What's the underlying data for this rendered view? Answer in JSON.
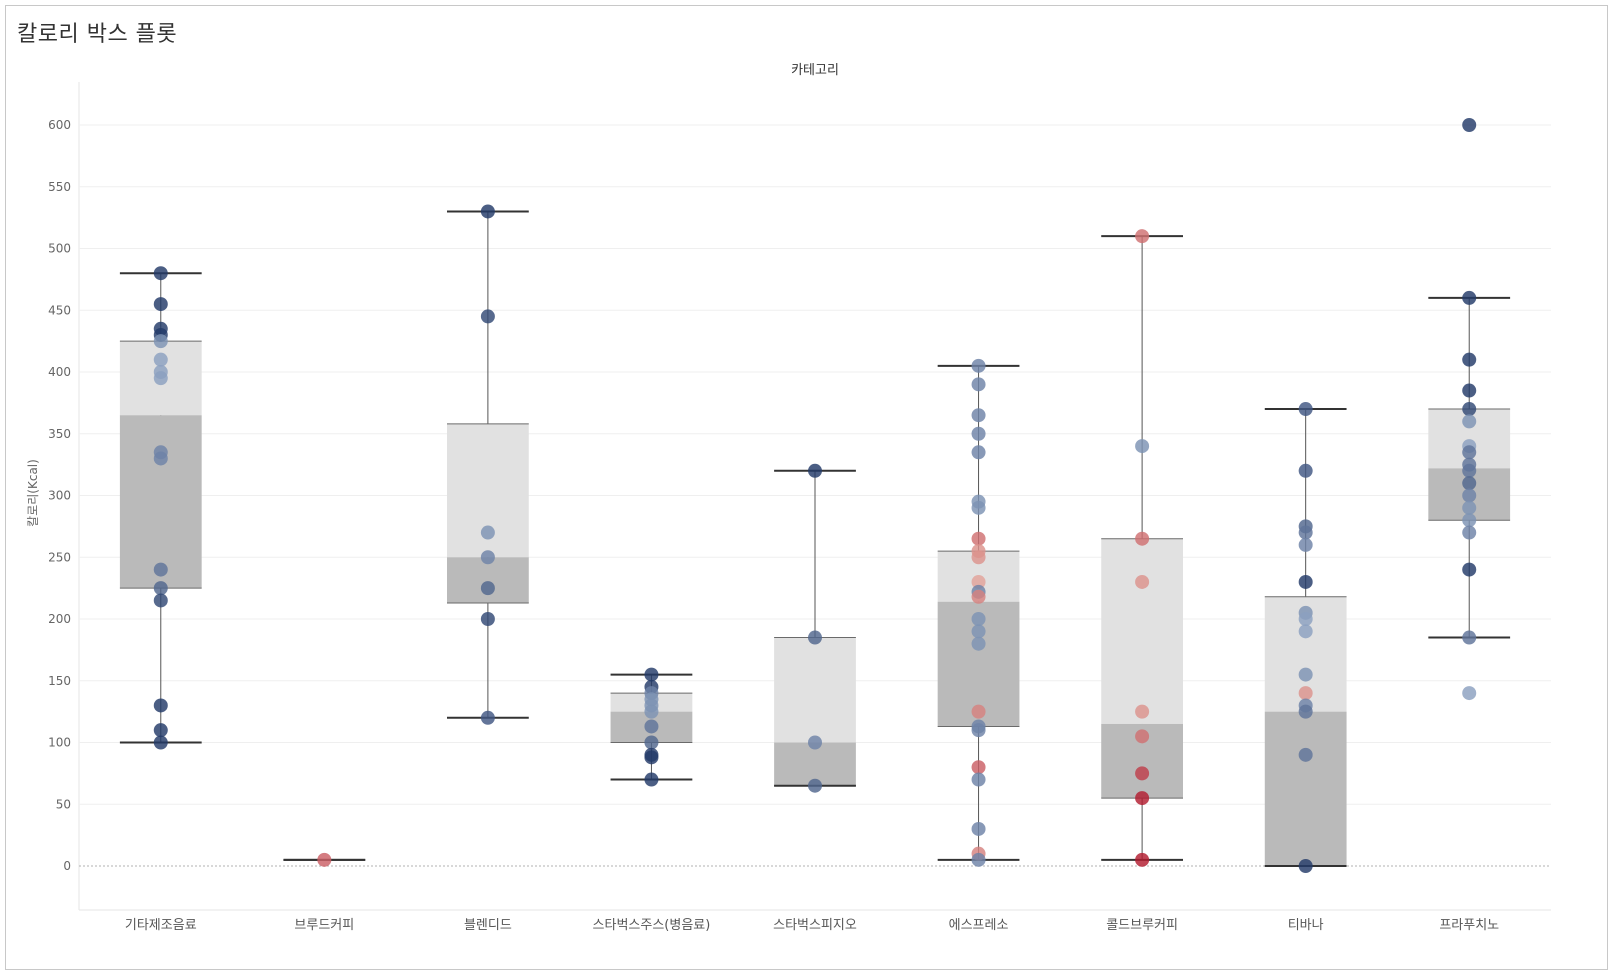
{
  "title": "칼로리 박스 플롯",
  "chart_data": {
    "type": "box",
    "column_header": "카테고리",
    "ylabel": "칼로리(Kcal)",
    "ylim": [
      -35,
      640
    ],
    "yticks": [
      0,
      50,
      100,
      150,
      200,
      250,
      300,
      350,
      400,
      450,
      500,
      550,
      600
    ],
    "grid": true,
    "categories": [
      {
        "name": "기타제조음료",
        "box": {
          "lower_whisker": 100,
          "q1": 225,
          "median": 365,
          "q3": 425,
          "upper_whisker": 480
        },
        "points": [
          {
            "v": 480,
            "c": 1
          },
          {
            "v": 455,
            "c": 1
          },
          {
            "v": 435,
            "c": 1
          },
          {
            "v": 430,
            "c": 1
          },
          {
            "v": 425,
            "c": 0.4
          },
          {
            "v": 410,
            "c": 0.3
          },
          {
            "v": 400,
            "c": 0.3
          },
          {
            "v": 395,
            "c": 0.3
          },
          {
            "v": 335,
            "c": 0.5
          },
          {
            "v": 330,
            "c": 0.5
          },
          {
            "v": 240,
            "c": 0.6
          },
          {
            "v": 225,
            "c": 0.7
          },
          {
            "v": 215,
            "c": 0.9
          },
          {
            "v": 130,
            "c": 1
          },
          {
            "v": 110,
            "c": 1
          },
          {
            "v": 100,
            "c": 1
          }
        ]
      },
      {
        "name": "브루드커피",
        "box": {
          "lower_whisker": 5,
          "q1": 5,
          "median": 5,
          "q3": 5,
          "upper_whisker": 5
        },
        "points": [
          {
            "v": 5,
            "c": -0.6
          }
        ]
      },
      {
        "name": "블렌디드",
        "box": {
          "lower_whisker": 120,
          "q1": 213,
          "median": 250,
          "q3": 358,
          "upper_whisker": 530
        },
        "points": [
          {
            "v": 530,
            "c": 1
          },
          {
            "v": 445,
            "c": 0.9
          },
          {
            "v": 270,
            "c": 0.4
          },
          {
            "v": 250,
            "c": 0.5
          },
          {
            "v": 225,
            "c": 0.7
          },
          {
            "v": 200,
            "c": 0.9
          },
          {
            "v": 120,
            "c": 0.8
          }
        ]
      },
      {
        "name": "스타벅스주스(병음료)",
        "box": {
          "lower_whisker": 70,
          "q1": 100,
          "median": 125,
          "q3": 140,
          "upper_whisker": 155
        },
        "points": [
          {
            "v": 155,
            "c": 1
          },
          {
            "v": 145,
            "c": 1
          },
          {
            "v": 140,
            "c": 0.5
          },
          {
            "v": 135,
            "c": 0.4
          },
          {
            "v": 130,
            "c": 0.4
          },
          {
            "v": 125,
            "c": 0.4
          },
          {
            "v": 113,
            "c": 0.6
          },
          {
            "v": 100,
            "c": 0.7
          },
          {
            "v": 90,
            "c": 1
          },
          {
            "v": 88,
            "c": 1
          },
          {
            "v": 70,
            "c": 1
          }
        ]
      },
      {
        "name": "스타벅스피지오",
        "box": {
          "lower_whisker": 65,
          "q1": 65,
          "median": 100,
          "q3": 185,
          "upper_whisker": 320
        },
        "points": [
          {
            "v": 320,
            "c": 1
          },
          {
            "v": 185,
            "c": 0.7
          },
          {
            "v": 100,
            "c": 0.5
          },
          {
            "v": 65,
            "c": 0.7
          }
        ]
      },
      {
        "name": "에스프레소",
        "box": {
          "lower_whisker": 5,
          "q1": 113,
          "median": 214,
          "q3": 255,
          "upper_whisker": 405
        },
        "points": [
          {
            "v": 405,
            "c": 0.5
          },
          {
            "v": 390,
            "c": 0.5
          },
          {
            "v": 365,
            "c": 0.5
          },
          {
            "v": 350,
            "c": 0.5
          },
          {
            "v": 335,
            "c": 0.5
          },
          {
            "v": 295,
            "c": 0.4
          },
          {
            "v": 290,
            "c": 0.4
          },
          {
            "v": 265,
            "c": -0.5
          },
          {
            "v": 255,
            "c": -0.3
          },
          {
            "v": 250,
            "c": -0.3
          },
          {
            "v": 230,
            "c": -0.2
          },
          {
            "v": 222,
            "c": 0.5
          },
          {
            "v": 218,
            "c": -0.4
          },
          {
            "v": 200,
            "c": 0.4
          },
          {
            "v": 190,
            "c": 0.4
          },
          {
            "v": 180,
            "c": 0.4
          },
          {
            "v": 125,
            "c": -0.4
          },
          {
            "v": 113,
            "c": 0.5
          },
          {
            "v": 110,
            "c": 0.5
          },
          {
            "v": 80,
            "c": -0.6
          },
          {
            "v": 70,
            "c": 0.5
          },
          {
            "v": 30,
            "c": 0.5
          },
          {
            "v": 10,
            "c": -0.4
          },
          {
            "v": 5,
            "c": 0.5
          }
        ]
      },
      {
        "name": "콜드브루커피",
        "box": {
          "lower_whisker": 5,
          "q1": 55,
          "median": 115,
          "q3": 265,
          "upper_whisker": 510
        },
        "points": [
          {
            "v": 510,
            "c": -0.5
          },
          {
            "v": 340,
            "c": 0.4
          },
          {
            "v": 265,
            "c": -0.5
          },
          {
            "v": 230,
            "c": -0.3
          },
          {
            "v": 125,
            "c": -0.3
          },
          {
            "v": 105,
            "c": -0.5
          },
          {
            "v": 75,
            "c": -0.8
          },
          {
            "v": 55,
            "c": -1
          },
          {
            "v": 5,
            "c": -1
          }
        ]
      },
      {
        "name": "티바나",
        "box": {
          "lower_whisker": 0,
          "q1": 0,
          "median": 125,
          "q3": 218,
          "upper_whisker": 370
        },
        "points": [
          {
            "v": 370,
            "c": 0.8
          },
          {
            "v": 320,
            "c": 0.8
          },
          {
            "v": 275,
            "c": 0.7
          },
          {
            "v": 270,
            "c": 0.6
          },
          {
            "v": 260,
            "c": 0.5
          },
          {
            "v": 230,
            "c": 1
          },
          {
            "v": 205,
            "c": 0.4
          },
          {
            "v": 200,
            "c": 0.3
          },
          {
            "v": 190,
            "c": 0.3
          },
          {
            "v": 155,
            "c": 0.4
          },
          {
            "v": 140,
            "c": -0.3
          },
          {
            "v": 130,
            "c": 0.5
          },
          {
            "v": 125,
            "c": 0.6
          },
          {
            "v": 90,
            "c": 0.6
          },
          {
            "v": 0,
            "c": 1
          }
        ]
      },
      {
        "name": "프라푸치노",
        "box": {
          "lower_whisker": 185,
          "q1": 280,
          "median": 322,
          "q3": 370,
          "upper_whisker": 460
        },
        "points": [
          {
            "v": 600,
            "c": 1
          },
          {
            "v": 460,
            "c": 1
          },
          {
            "v": 410,
            "c": 1
          },
          {
            "v": 385,
            "c": 1
          },
          {
            "v": 370,
            "c": 0.9
          },
          {
            "v": 360,
            "c": 0.4
          },
          {
            "v": 340,
            "c": 0.3
          },
          {
            "v": 335,
            "c": 0.6
          },
          {
            "v": 325,
            "c": 0.6
          },
          {
            "v": 320,
            "c": 0.6
          },
          {
            "v": 310,
            "c": 0.7
          },
          {
            "v": 300,
            "c": 0.5
          },
          {
            "v": 290,
            "c": 0.4
          },
          {
            "v": 280,
            "c": 0.4
          },
          {
            "v": 270,
            "c": 0.5
          },
          {
            "v": 240,
            "c": 1
          },
          {
            "v": 185,
            "c": 0.6
          },
          {
            "v": 140,
            "c": 0.3
          }
        ]
      }
    ]
  }
}
